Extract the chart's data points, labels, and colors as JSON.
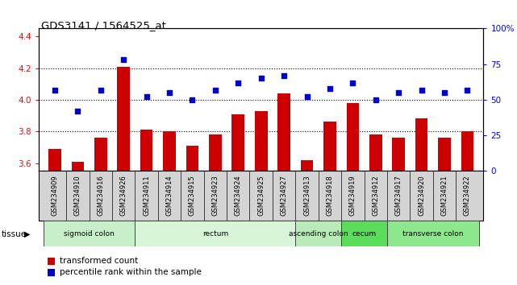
{
  "title": "GDS3141 / 1564525_at",
  "samples": [
    "GSM234909",
    "GSM234910",
    "GSM234916",
    "GSM234926",
    "GSM234911",
    "GSM234914",
    "GSM234915",
    "GSM234923",
    "GSM234924",
    "GSM234925",
    "GSM234927",
    "GSM234913",
    "GSM234918",
    "GSM234919",
    "GSM234912",
    "GSM234917",
    "GSM234920",
    "GSM234921",
    "GSM234922"
  ],
  "bar_values": [
    3.69,
    3.61,
    3.76,
    4.21,
    3.81,
    3.8,
    3.71,
    3.78,
    3.91,
    3.93,
    4.04,
    3.62,
    3.86,
    3.98,
    3.78,
    3.76,
    3.88,
    3.76,
    3.8
  ],
  "dot_values": [
    57,
    42,
    57,
    78,
    52,
    55,
    50,
    57,
    62,
    65,
    67,
    52,
    58,
    62,
    50,
    55,
    57,
    55,
    57
  ],
  "ylim_left": [
    3.55,
    4.45
  ],
  "ylim_right": [
    0,
    100
  ],
  "yticks_left": [
    3.6,
    3.8,
    4.0,
    4.2,
    4.4
  ],
  "yticks_right": [
    0,
    25,
    50,
    75,
    100
  ],
  "hlines": [
    3.8,
    4.0,
    4.2
  ],
  "tissue_groups": [
    {
      "label": "sigmoid colon",
      "start": 0,
      "end": 3,
      "color": "#c8f0c8"
    },
    {
      "label": "rectum",
      "start": 4,
      "end": 10,
      "color": "#d8f5d8"
    },
    {
      "label": "ascending colon",
      "start": 11,
      "end": 12,
      "color": "#b8ebb8"
    },
    {
      "label": "cecum",
      "start": 13,
      "end": 14,
      "color": "#5cdc5c"
    },
    {
      "label": "transverse colon",
      "start": 15,
      "end": 18,
      "color": "#8de88d"
    }
  ],
  "bar_color": "#cc0000",
  "dot_color": "#0000cc",
  "bar_bottom": 3.55,
  "tissue_label": "tissue",
  "legend_bar": "transformed count",
  "legend_dot": "percentile rank within the sample"
}
